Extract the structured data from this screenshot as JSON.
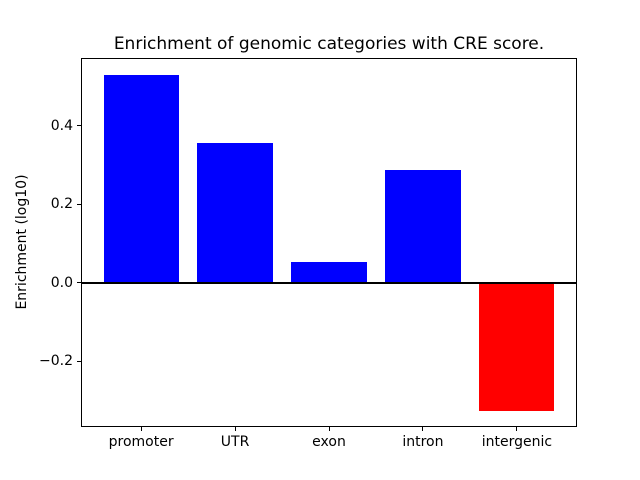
{
  "chart_data": {
    "type": "bar",
    "title": "Enrichment of genomic categories with CRE score.",
    "xlabel": "",
    "ylabel": "Enrichment (log10)",
    "categories": [
      "promoter",
      "UTR",
      "exon",
      "intron",
      "intergenic"
    ],
    "values": [
      0.53,
      0.357,
      0.054,
      0.288,
      -0.326
    ],
    "positive_color": "#0000ff",
    "negative_color": "#ff0000",
    "yticks": [
      -0.2,
      0.0,
      0.2,
      0.4
    ],
    "ylim": [
      -0.368,
      0.573
    ],
    "xlim": [
      -0.64,
      4.64
    ],
    "bar_width": 0.8,
    "baseline": {
      "y": 0.0,
      "color": "#000000"
    },
    "grid": false,
    "legend": null,
    "background_color": "#ffffff"
  }
}
